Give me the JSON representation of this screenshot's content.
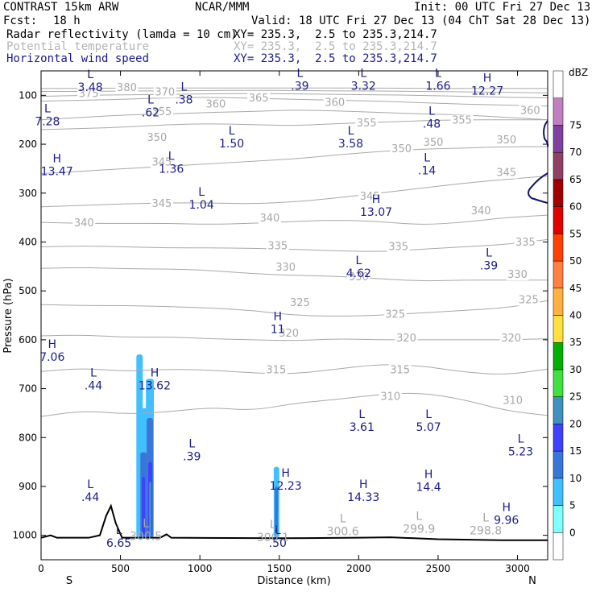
{
  "header": {
    "model": "CONTRAST 15km ARW",
    "org": "NCAR/MMM",
    "init": "Init: 00 UTC Fri 27 Dec 13",
    "fcst_label": "Fcst:",
    "fcst_value": "18 h",
    "valid": "Valid: 18 UTC Fri 27 Dec 13 (04 ChT Sat 28 Dec 13)",
    "fields": [
      {
        "name": "Radar reflectivity (lamda = 10 cm)",
        "xy": "XY= 235.3,  2.5 to 235.3,214.7",
        "color": "#000000"
      },
      {
        "name": "Potential temperature",
        "xy": "XY= 235.3,  2.5 to 235.3,214.7",
        "color": "#b4b4b4"
      },
      {
        "name": "Horizontal wind speed",
        "xy": "XY= 235.3,  2.5 to 235.3,214.7",
        "color": "#1a1a8c"
      }
    ]
  },
  "chart_data": {
    "type": "cross-section",
    "xlabel": "Distance (km)",
    "ylabel": "Pressure (hPa)",
    "xlim": [
      0,
      3190
    ],
    "ylim": [
      1050,
      50
    ],
    "x_ticks": [
      0,
      500,
      1000,
      1500,
      2000,
      2500,
      3000
    ],
    "y_ticks": [
      100,
      200,
      300,
      400,
      500,
      600,
      700,
      800,
      900,
      1000
    ],
    "x_ends": {
      "left": "S",
      "right": "N"
    },
    "colorbar": {
      "unit": "dBZ",
      "levels": [
        0,
        5,
        10,
        15,
        20,
        25,
        30,
        35,
        40,
        45,
        50,
        55,
        60,
        65,
        70,
        75
      ],
      "colors": [
        "#ffffff",
        "#80ffff",
        "#40c0ff",
        "#3a76d8",
        "#4040ff",
        "#4090c0",
        "#40e040",
        "#00b000",
        "#ffe040",
        "#ffb040",
        "#ff8040",
        "#ff4000",
        "#e00000",
        "#a00000",
        "#904060",
        "#8040a0",
        "#c080c0",
        "#ffffff"
      ]
    },
    "theta_isentropes": [
      {
        "value": 310,
        "p": [
          757,
          745,
          752,
          748,
          738,
          745,
          730,
          722,
          712,
          708,
          722,
          745,
          755
        ]
      },
      {
        "value": 315,
        "p": [
          665,
          658,
          665,
          660,
          662,
          668,
          670,
          660,
          650,
          653,
          666,
          672,
          660
        ]
      },
      {
        "value": 320,
        "p": [
          592,
          590,
          595,
          594,
          598,
          600,
          602,
          598,
          600,
          600,
          600,
          600,
          598
        ]
      },
      {
        "value": 325,
        "p": [
          528,
          530,
          530,
          532,
          535,
          540,
          550,
          552,
          550,
          545,
          540,
          535,
          520
        ]
      },
      {
        "value": 330,
        "p": [
          454,
          452,
          455,
          455,
          458,
          465,
          468,
          470,
          475,
          480,
          478,
          478,
          478
        ]
      },
      {
        "value": 335,
        "p": [
          410,
          408,
          410,
          412,
          412,
          413,
          415,
          418,
          420,
          415,
          410,
          405,
          395
        ]
      },
      {
        "value": 340,
        "p": [
          360,
          362,
          362,
          362,
          364,
          362,
          358,
          355,
          358,
          365,
          360,
          350,
          345
        ]
      },
      {
        "value": 345,
        "p": [
          328,
          325,
          322,
          320,
          320,
          322,
          318,
          310,
          300,
          290,
          280,
          272,
          265
        ]
      },
      {
        "value": 350,
        "p": [
          260,
          255,
          250,
          245,
          240,
          235,
          230,
          222,
          215,
          210,
          208,
          205,
          205
        ]
      },
      {
        "value": 355,
        "p": [
          170,
          168,
          165,
          160,
          158,
          160,
          162,
          158,
          155,
          152,
          150,
          150,
          150
        ]
      },
      {
        "value": 360,
        "p": [
          150,
          145,
          140,
          138,
          135,
          133,
          130,
          132,
          135,
          138,
          140,
          145,
          150
        ]
      },
      {
        "value": 365,
        "p": [
          112,
          110,
          108,
          105,
          104,
          106,
          108,
          110,
          112,
          115,
          118,
          120,
          122
        ]
      },
      {
        "value": 370,
        "p": [
          102,
          100,
          99,
          98,
          97,
          96,
          97,
          98,
          99,
          100,
          102,
          104,
          105
        ]
      },
      {
        "value": 375,
        "p": [
          92,
          92,
          91,
          91,
          90,
          90,
          90,
          91,
          91,
          92,
          93,
          94,
          95
        ]
      },
      {
        "value": 380,
        "p": [
          86,
          86,
          85,
          85,
          85,
          85,
          85,
          85,
          85,
          86,
          86,
          86,
          86
        ]
      }
    ],
    "theta_labels": [
      {
        "text": "375",
        "x": 300,
        "p": 100
      },
      {
        "text": "380",
        "x": 540,
        "p": 88
      },
      {
        "text": "370",
        "x": 780,
        "p": 97
      },
      {
        "text": "365",
        "x": 1370,
        "p": 109
      },
      {
        "text": "360",
        "x": 1100,
        "p": 122
      },
      {
        "text": "360",
        "x": 1850,
        "p": 118
      },
      {
        "text": "360",
        "x": 3080,
        "p": 135
      },
      {
        "text": "355",
        "x": 2050,
        "p": 160
      },
      {
        "text": "355",
        "x": 2650,
        "p": 155
      },
      {
        "text": "350",
        "x": 2270,
        "p": 213
      },
      {
        "text": "350",
        "x": 2470,
        "p": 200
      },
      {
        "text": "350",
        "x": 2930,
        "p": 195
      },
      {
        "text": "345",
        "x": 2070,
        "p": 310
      },
      {
        "text": "345",
        "x": 2930,
        "p": 262
      },
      {
        "text": "345",
        "x": 760,
        "p": 325
      },
      {
        "text": "340",
        "x": 270,
        "p": 365
      },
      {
        "text": "340",
        "x": 1440,
        "p": 355
      },
      {
        "text": "340",
        "x": 2770,
        "p": 340
      },
      {
        "text": "335",
        "x": 1490,
        "p": 412
      },
      {
        "text": "335",
        "x": 2250,
        "p": 413
      },
      {
        "text": "335",
        "x": 3050,
        "p": 404
      },
      {
        "text": "330",
        "x": 1540,
        "p": 455
      },
      {
        "text": "330",
        "x": 2000,
        "p": 475
      },
      {
        "text": "330",
        "x": 3000,
        "p": 470
      },
      {
        "text": "325",
        "x": 1630,
        "p": 528
      },
      {
        "text": "325",
        "x": 2230,
        "p": 552
      },
      {
        "text": "325",
        "x": 3070,
        "p": 522
      },
      {
        "text": "320",
        "x": 1560,
        "p": 590
      },
      {
        "text": "320",
        "x": 2300,
        "p": 600
      },
      {
        "text": "320",
        "x": 2960,
        "p": 600
      },
      {
        "text": "315",
        "x": 1480,
        "p": 665
      },
      {
        "text": "315",
        "x": 2260,
        "p": 665
      },
      {
        "text": "310",
        "x": 2200,
        "p": 720
      },
      {
        "text": "310",
        "x": 2970,
        "p": 728
      },
      {
        "text": "355",
        "x": 760,
        "p": 137
      },
      {
        "text": "350",
        "x": 730,
        "p": 190
      },
      {
        "text": "345",
        "x": 760,
        "p": 240
      }
    ],
    "wind_extrema": [
      {
        "kind": "L",
        "value": "3.48",
        "x": 310,
        "p": 65
      },
      {
        "kind": "L",
        "value": ".38",
        "x": 900,
        "p": 90
      },
      {
        "kind": "L",
        "value": ".39",
        "x": 1630,
        "p": 62
      },
      {
        "kind": "L",
        "value": "3.32",
        "x": 2030,
        "p": 62
      },
      {
        "kind": "L",
        "value": "1.66",
        "x": 2500,
        "p": 62
      },
      {
        "kind": "H",
        "value": "12.27",
        "x": 2810,
        "p": 72
      },
      {
        "kind": "L",
        "value": "7.28",
        "x": 40,
        "p": 135
      },
      {
        "kind": "L",
        "value": ".62",
        "x": 690,
        "p": 117
      },
      {
        "kind": "L",
        "value": ".48",
        "x": 2460,
        "p": 140
      },
      {
        "kind": "L",
        "value": "1.50",
        "x": 1200,
        "p": 180
      },
      {
        "kind": "L",
        "value": "3.58",
        "x": 1950,
        "p": 180
      },
      {
        "kind": "L",
        "value": ".14",
        "x": 2430,
        "p": 235
      },
      {
        "kind": "H",
        "value": "13.47",
        "x": 100,
        "p": 237
      },
      {
        "kind": "L",
        "value": "1.36",
        "x": 820,
        "p": 232
      },
      {
        "kind": "L",
        "value": "1.04",
        "x": 1010,
        "p": 305
      },
      {
        "kind": "H",
        "value": "13.07",
        "x": 2110,
        "p": 320
      },
      {
        "kind": "L",
        "value": ".39",
        "x": 2820,
        "p": 430
      },
      {
        "kind": "L",
        "value": "4.62",
        "x": 2000,
        "p": 445
      },
      {
        "kind": "H",
        "value": "11",
        "x": 1490,
        "p": 560
      },
      {
        "kind": "H",
        "value": "7.06",
        "x": 70,
        "p": 617
      },
      {
        "kind": "L",
        "value": ".44",
        "x": 330,
        "p": 675
      },
      {
        "kind": "H",
        "value": "13.62",
        "x": 715,
        "p": 675
      },
      {
        "kind": "L",
        "value": "3.61",
        "x": 2020,
        "p": 760
      },
      {
        "kind": "L",
        "value": "5.07",
        "x": 2440,
        "p": 760
      },
      {
        "kind": "L",
        "value": "5.23",
        "x": 3020,
        "p": 810
      },
      {
        "kind": "L",
        "value": ".39",
        "x": 950,
        "p": 820
      },
      {
        "kind": "H",
        "value": "12.23",
        "x": 1540,
        "p": 880
      },
      {
        "kind": "H",
        "value": "14.4",
        "x": 2440,
        "p": 883
      },
      {
        "kind": "L",
        "value": ".44",
        "x": 310,
        "p": 903
      },
      {
        "kind": "H",
        "value": "14.33",
        "x": 2030,
        "p": 903
      },
      {
        "kind": "H",
        "value": "9.96",
        "x": 2930,
        "p": 950
      },
      {
        "kind": "L",
        "value": "6.65",
        "x": 490,
        "p": 997
      },
      {
        "kind": "L",
        "value": ".50",
        "x": 1490,
        "p": 997
      }
    ],
    "theta_extrema": [
      {
        "kind": "L",
        "value": "300.6",
        "x": 1900,
        "p": 1000
      },
      {
        "kind": "L",
        "value": "299.9",
        "x": 2380,
        "p": 995
      },
      {
        "kind": "L",
        "value": "298.8",
        "x": 2800,
        "p": 998
      },
      {
        "kind": "L",
        "value": "300.5",
        "x": 660,
        "p": 1010
      },
      {
        "kind": "L",
        "value": "300.1",
        "x": 1460,
        "p": 1012
      }
    ],
    "terrain": [
      [
        0,
        1005
      ],
      [
        60,
        1000
      ],
      [
        100,
        1005
      ],
      [
        300,
        1005
      ],
      [
        370,
        1000
      ],
      [
        410,
        960
      ],
      [
        440,
        940
      ],
      [
        470,
        975
      ],
      [
        510,
        1005
      ],
      [
        750,
        1005
      ],
      [
        790,
        998
      ],
      [
        820,
        1005
      ],
      [
        1500,
        1006
      ],
      [
        2000,
        1005
      ],
      [
        2200,
        1004
      ],
      [
        2500,
        1008
      ],
      [
        2900,
        1010
      ],
      [
        3190,
        1010
      ]
    ],
    "reflectivity_cells": [
      {
        "x0": 600,
        "x1": 640,
        "p0": 630,
        "p1": 1005,
        "dbz": 5
      },
      {
        "x0": 620,
        "x1": 680,
        "p0": 740,
        "p1": 1005,
        "dbz": 5
      },
      {
        "x0": 660,
        "x1": 710,
        "p0": 680,
        "p1": 1005,
        "dbz": 5
      },
      {
        "x0": 625,
        "x1": 665,
        "p0": 830,
        "p1": 1005,
        "dbz": 10
      },
      {
        "x0": 665,
        "x1": 705,
        "p0": 760,
        "p1": 1005,
        "dbz": 10
      },
      {
        "x0": 635,
        "x1": 655,
        "p0": 880,
        "p1": 1000,
        "dbz": 15
      },
      {
        "x0": 675,
        "x1": 700,
        "p0": 850,
        "p1": 1000,
        "dbz": 15
      },
      {
        "x0": 680,
        "x1": 695,
        "p0": 890,
        "p1": 1000,
        "dbz": 20
      },
      {
        "x0": 1465,
        "x1": 1500,
        "p0": 860,
        "p1": 1005,
        "dbz": 5
      },
      {
        "x0": 1472,
        "x1": 1492,
        "p0": 900,
        "p1": 1000,
        "dbz": 10
      }
    ]
  }
}
